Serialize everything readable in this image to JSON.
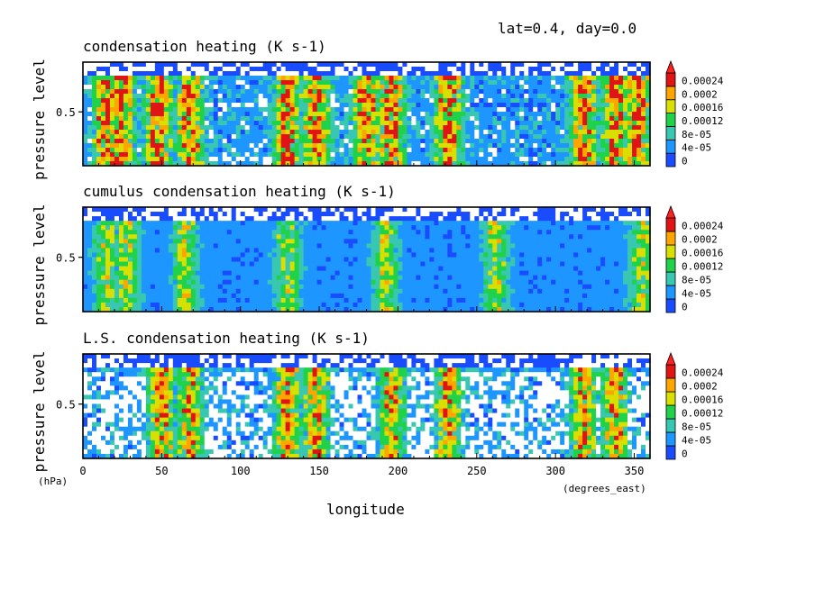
{
  "header": {
    "info": "lat=0.4, day=0.0"
  },
  "colors": {
    "levels": [
      "#1a4cff",
      "#1e96ff",
      "#38c7b0",
      "#1fd24a",
      "#d9df00",
      "#ffa500",
      "#e01414",
      "#ff2020"
    ],
    "background": "#ffffff",
    "frame": "#000000"
  },
  "chart_data": [
    {
      "type": "heatmap",
      "title": "condensation heating (K s-1)",
      "xlabel": "",
      "ylabel": "pressure level",
      "y_ticks": [
        "0.5"
      ],
      "xlim": [
        0,
        360
      ],
      "colorbar": {
        "labels": [
          "0.00024",
          "0.0002",
          "0.00016",
          "0.00012",
          "8e-05",
          "4e-05",
          "0"
        ],
        "extend": "max"
      },
      "hotspots": [
        15,
        25,
        48,
        68,
        130,
        148,
        180,
        196,
        232,
        318,
        338,
        352
      ],
      "intensity": 1.0
    },
    {
      "type": "heatmap",
      "title": "cumulus condensation heating (K s-1)",
      "xlabel": "",
      "ylabel": "pressure level",
      "y_ticks": [
        "0.5"
      ],
      "xlim": [
        0,
        360
      ],
      "colorbar": {
        "labels": [
          "0.00024",
          "0.0002",
          "0.00016",
          "0.00012",
          "8e-05",
          "4e-05",
          "0"
        ],
        "extend": "max"
      },
      "hotspots": [
        15,
        28,
        65,
        130,
        192,
        262,
        355
      ],
      "intensity": 0.55
    },
    {
      "type": "heatmap",
      "title": "L.S. condensation heating (K s-1)",
      "xlabel": "longitude",
      "ylabel": "pressure level",
      "y_ticks": [
        "0.5"
      ],
      "x_ticks": [
        "0",
        "50",
        "100",
        "150",
        "200",
        "250",
        "300",
        "350"
      ],
      "xlim": [
        0,
        360
      ],
      "colorbar": {
        "labels": [
          "0.00024",
          "0.0002",
          "0.00016",
          "0.00012",
          "8e-05",
          "4e-05",
          "0"
        ],
        "extend": "max"
      },
      "hotspots": [
        50,
        68,
        130,
        148,
        196,
        232,
        318,
        338
      ],
      "intensity": 0.85
    }
  ],
  "axes": {
    "y_unit": "(hPa)",
    "x_unit": "(degrees_east)",
    "xlabel": "longitude"
  }
}
